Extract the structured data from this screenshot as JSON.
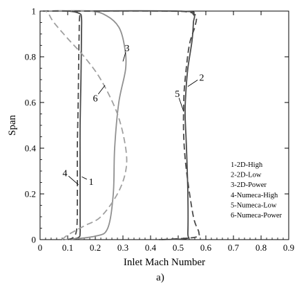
{
  "chart_data": {
    "type": "line",
    "xlabel": "Inlet Mach Number",
    "ylabel": "Span",
    "caption": "a)",
    "xlim": [
      0,
      0.9
    ],
    "ylim": [
      0,
      1
    ],
    "xticks": [
      "0",
      "0.1",
      "0.2",
      "0.3",
      "0.4",
      "0.5",
      "0.6",
      "0.7",
      "0.8",
      "0.9"
    ],
    "yticks": [
      "0",
      "0.2",
      "0.4",
      "0.6",
      "0.8",
      "1"
    ],
    "grid": false,
    "legend_position": "bottom-right",
    "legend": [
      "1-2D-High",
      "2-2D-Low",
      "3-2D-Power",
      "4-Numeca-High",
      "5-Numeca-Low",
      "6-Numeca-Power"
    ],
    "series": [
      {
        "label": "1",
        "color": "#4a4a4a",
        "dash": "solid",
        "points": [
          [
            0.11,
            0.0
          ],
          [
            0.14,
            0.01
          ],
          [
            0.145,
            0.03
          ],
          [
            0.145,
            0.1
          ],
          [
            0.145,
            0.3
          ],
          [
            0.145,
            0.5
          ],
          [
            0.148,
            0.7
          ],
          [
            0.15,
            0.9
          ],
          [
            0.15,
            0.97
          ],
          [
            0.142,
            0.99
          ],
          [
            0.1,
            1.0
          ],
          [
            0.01,
            1.0
          ]
        ]
      },
      {
        "label": "2",
        "color": "#4a4a4a",
        "dash": "solid",
        "points": [
          [
            0.43,
            0.0
          ],
          [
            0.53,
            0.005
          ],
          [
            0.535,
            0.03
          ],
          [
            0.535,
            0.2
          ],
          [
            0.53,
            0.4
          ],
          [
            0.525,
            0.55
          ],
          [
            0.528,
            0.65
          ],
          [
            0.535,
            0.75
          ],
          [
            0.55,
            0.87
          ],
          [
            0.555,
            0.95
          ],
          [
            0.555,
            0.985
          ],
          [
            0.5,
            1.0
          ],
          [
            0.02,
            1.0
          ]
        ]
      },
      {
        "label": "3",
        "color": "#909090",
        "dash": "solid",
        "points": [
          [
            0.09,
            0.0
          ],
          [
            0.2,
            0.015
          ],
          [
            0.245,
            0.05
          ],
          [
            0.265,
            0.2
          ],
          [
            0.27,
            0.4
          ],
          [
            0.285,
            0.6
          ],
          [
            0.31,
            0.75
          ],
          [
            0.305,
            0.85
          ],
          [
            0.285,
            0.93
          ],
          [
            0.24,
            0.98
          ],
          [
            0.18,
            1.0
          ],
          [
            0.02,
            1.0
          ]
        ]
      },
      {
        "label": "4",
        "color": "#4a4a4a",
        "dash": "dashed",
        "points": [
          [
            0.1,
            0.0
          ],
          [
            0.12,
            0.01
          ],
          [
            0.133,
            0.05
          ],
          [
            0.135,
            0.2
          ],
          [
            0.135,
            0.4
          ],
          [
            0.138,
            0.6
          ],
          [
            0.14,
            0.8
          ],
          [
            0.142,
            0.95
          ],
          [
            0.14,
            0.99
          ],
          [
            0.1,
            1.0
          ],
          [
            0.02,
            1.0
          ]
        ]
      },
      {
        "label": "5",
        "color": "#4a4a4a",
        "dash": "dashed",
        "points": [
          [
            0.44,
            0.0
          ],
          [
            0.56,
            0.01
          ],
          [
            0.575,
            0.03
          ],
          [
            0.555,
            0.1
          ],
          [
            0.53,
            0.3
          ],
          [
            0.52,
            0.45
          ],
          [
            0.52,
            0.6
          ],
          [
            0.525,
            0.7
          ],
          [
            0.54,
            0.85
          ],
          [
            0.56,
            0.93
          ],
          [
            0.565,
            0.975
          ],
          [
            0.54,
            0.995
          ],
          [
            0.45,
            1.0
          ],
          [
            0.1,
            1.0
          ]
        ]
      },
      {
        "label": "6",
        "color": "#a0a0a0",
        "dash": "dashed",
        "points": [
          [
            0.08,
            0.0
          ],
          [
            0.1,
            0.02
          ],
          [
            0.16,
            0.06
          ],
          [
            0.22,
            0.1
          ],
          [
            0.28,
            0.2
          ],
          [
            0.31,
            0.3
          ],
          [
            0.31,
            0.4
          ],
          [
            0.28,
            0.55
          ],
          [
            0.22,
            0.7
          ],
          [
            0.16,
            0.8
          ],
          [
            0.1,
            0.88
          ],
          [
            0.05,
            0.95
          ],
          [
            0.03,
            0.99
          ],
          [
            0.02,
            1.0
          ]
        ]
      }
    ],
    "callouts": [
      {
        "text": "1",
        "at": [
          0.151,
          0.275
        ],
        "label": [
          0.185,
          0.255
        ]
      },
      {
        "text": "2",
        "at": [
          0.535,
          0.67
        ],
        "label": [
          0.585,
          0.71
        ]
      },
      {
        "text": "3",
        "at": [
          0.3,
          0.78
        ],
        "label": [
          0.315,
          0.84
        ]
      },
      {
        "text": "4",
        "at": [
          0.139,
          0.24
        ],
        "label": [
          0.09,
          0.292
        ]
      },
      {
        "text": "5",
        "at": [
          0.52,
          0.56
        ],
        "label": [
          0.497,
          0.64
        ]
      },
      {
        "text": "6",
        "at": [
          0.235,
          0.675
        ],
        "label": [
          0.2,
          0.62
        ]
      }
    ]
  }
}
